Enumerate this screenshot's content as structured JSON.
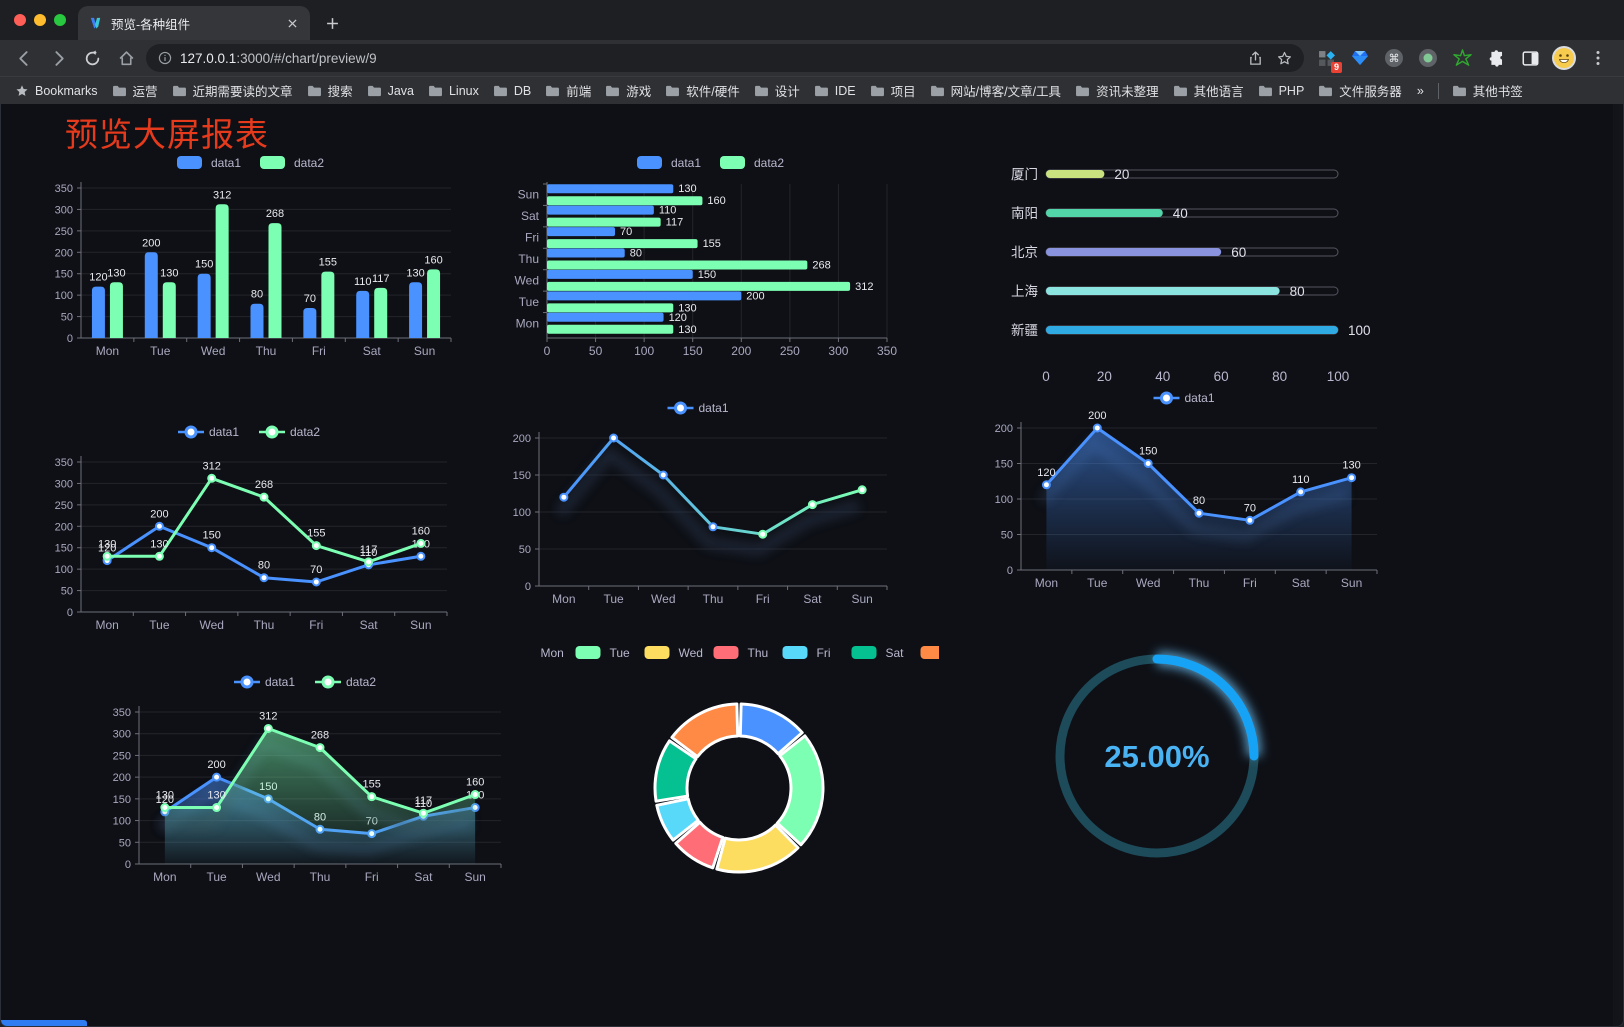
{
  "window": {
    "tab_title": "预览-各种组件",
    "extension_badge": "9"
  },
  "address": {
    "host": "127.0.0.1",
    "path": ":3000/#/chart/preview/9"
  },
  "bookmarks": {
    "label": "Bookmarks",
    "folders": [
      "运营",
      "近期需要读的文章",
      "搜索",
      "Java",
      "Linux",
      "DB",
      "前端",
      "游戏",
      "软件/硬件",
      "设计",
      "IDE",
      "项目",
      "网站/博客/文章/工具",
      "资讯未整理",
      "其他语言",
      "PHP",
      "文件服务器"
    ],
    "overflow": "»",
    "other_label": "其他书签"
  },
  "page": {
    "title": "预览大屏报表"
  },
  "colors": {
    "blue": "#4992ff",
    "green": "#7cffb2",
    "accent_red": "#e63a1d",
    "axis_text": "#a9a8bf",
    "value_text": "#e9e9f0",
    "legend_text": "#b9b8ce"
  },
  "chart_data": [
    {
      "id": "bar_vertical",
      "type": "bar",
      "categories": [
        "Mon",
        "Tue",
        "Wed",
        "Thu",
        "Fri",
        "Sat",
        "Sun"
      ],
      "series": [
        {
          "name": "data1",
          "color": "#4992ff",
          "values": [
            120,
            200,
            150,
            80,
            70,
            110,
            130
          ]
        },
        {
          "name": "data2",
          "color": "#7cffb2",
          "values": [
            130,
            130,
            312,
            268,
            155,
            117,
            160
          ]
        }
      ],
      "ylim": [
        0,
        350
      ],
      "yticks": [
        0,
        50,
        100,
        150,
        200,
        250,
        300,
        350
      ],
      "labels": true,
      "legend": "roundRect",
      "grid": true
    },
    {
      "id": "bar_horizontal",
      "type": "hbar",
      "categories": [
        "Mon",
        "Tue",
        "Wed",
        "Thu",
        "Fri",
        "Sat",
        "Sun"
      ],
      "series": [
        {
          "name": "data1",
          "color": "#4992ff",
          "values": [
            120,
            200,
            150,
            80,
            70,
            110,
            130
          ]
        },
        {
          "name": "data2",
          "color": "#7cffb2",
          "values": [
            130,
            130,
            312,
            268,
            155,
            117,
            160
          ]
        }
      ],
      "xlim": [
        0,
        350
      ],
      "xticks": [
        0,
        50,
        100,
        150,
        200,
        250,
        300,
        350
      ],
      "labels": true,
      "legend": "roundRect",
      "grid": true
    },
    {
      "id": "progress",
      "type": "progress",
      "max": 100,
      "rows": [
        {
          "label": "厦门",
          "value": 20,
          "color": "#c9e17f"
        },
        {
          "label": "南阳",
          "value": 40,
          "color": "#52d6a9"
        },
        {
          "label": "北京",
          "value": 60,
          "color": "#8a93dd"
        },
        {
          "label": "上海",
          "value": 80,
          "color": "#8ce4e0"
        },
        {
          "label": "新疆",
          "value": 100,
          "color": "#2faae3"
        }
      ],
      "xticks": [
        0,
        20,
        40,
        60,
        80,
        100
      ]
    },
    {
      "id": "line_two",
      "type": "line",
      "categories": [
        "Mon",
        "Tue",
        "Wed",
        "Thu",
        "Fri",
        "Sat",
        "Sun"
      ],
      "series": [
        {
          "name": "data1",
          "color": "#4992ff",
          "values": [
            120,
            200,
            150,
            80,
            70,
            110,
            130
          ]
        },
        {
          "name": "data2",
          "color": "#7cffb2",
          "values": [
            130,
            130,
            312,
            268,
            155,
            117,
            160
          ]
        }
      ],
      "ylim": [
        0,
        350
      ],
      "yticks": [
        0,
        50,
        100,
        150,
        200,
        250,
        300,
        350
      ],
      "labels": true,
      "markers": true,
      "legend": "circleLine",
      "grid": true
    },
    {
      "id": "line_gradient",
      "type": "line",
      "categories": [
        "Mon",
        "Tue",
        "Wed",
        "Thu",
        "Fri",
        "Sat",
        "Sun"
      ],
      "series": [
        {
          "name": "data1",
          "color": "#4992ff",
          "color2": "#7cffb2",
          "gradient": true,
          "values": [
            120,
            200,
            150,
            80,
            70,
            110,
            130
          ],
          "shadow": true
        }
      ],
      "ylim": [
        0,
        200
      ],
      "yticks": [
        0,
        50,
        100,
        150,
        200
      ],
      "labels": false,
      "markers": true,
      "legend": "circleLine",
      "grid": true
    },
    {
      "id": "area_single",
      "type": "line",
      "categories": [
        "Mon",
        "Tue",
        "Wed",
        "Thu",
        "Fri",
        "Sat",
        "Sun"
      ],
      "series": [
        {
          "name": "data1",
          "color": "#4992ff",
          "values": [
            120,
            200,
            150,
            80,
            70,
            110,
            130
          ],
          "area": true,
          "shadow": true
        }
      ],
      "ylim": [
        0,
        200
      ],
      "yticks": [
        0,
        50,
        100,
        150,
        200
      ],
      "labels": true,
      "markers": true,
      "legend": "circleLine",
      "grid": true
    },
    {
      "id": "area_two",
      "type": "line",
      "categories": [
        "Mon",
        "Tue",
        "Wed",
        "Thu",
        "Fri",
        "Sat",
        "Sun"
      ],
      "series": [
        {
          "name": "data1",
          "color": "#4992ff",
          "values": [
            120,
            200,
            150,
            80,
            70,
            110,
            130
          ],
          "area": true,
          "shadow": true
        },
        {
          "name": "data2",
          "color": "#7cffb2",
          "values": [
            130,
            130,
            312,
            268,
            155,
            117,
            160
          ],
          "area": true,
          "shadow": true
        }
      ],
      "ylim": [
        0,
        350
      ],
      "yticks": [
        0,
        50,
        100,
        150,
        200,
        250,
        300,
        350
      ],
      "labels": true,
      "markers": true,
      "legend": "circleLine",
      "grid": true
    },
    {
      "id": "donut",
      "type": "donut",
      "categories": [
        "Mon",
        "Tue",
        "Wed",
        "Thu",
        "Fri",
        "Sat",
        "Sun"
      ],
      "values": [
        120,
        200,
        150,
        80,
        70,
        110,
        130
      ],
      "colors": [
        "#4992ff",
        "#7cffb2",
        "#fddd60",
        "#ff6e76",
        "#58d9f9",
        "#05c091",
        "#ff8a45"
      ],
      "legend": "roundRect",
      "legend_position": "top"
    },
    {
      "id": "gauge",
      "type": "gauge",
      "value": 25,
      "label": "25.00%",
      "color": "#16a3f6",
      "track_color": "#1d4b59",
      "text_color": "#4ab3f3"
    }
  ]
}
